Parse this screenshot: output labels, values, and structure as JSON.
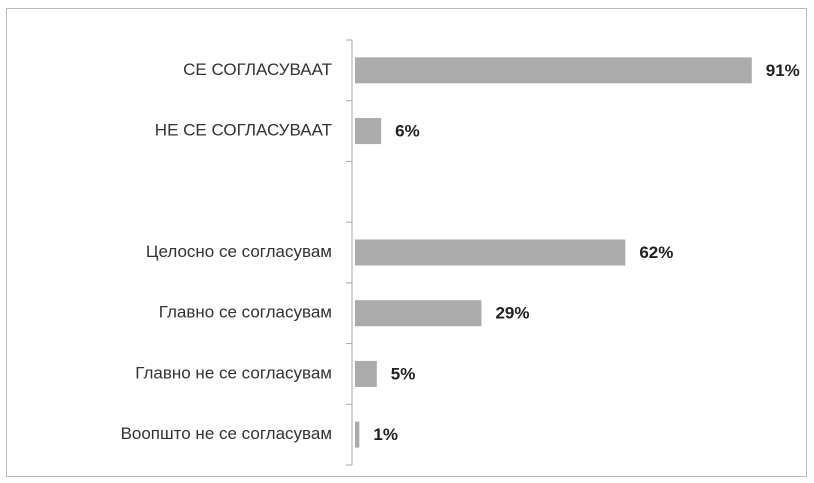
{
  "chart_data": {
    "type": "hbar",
    "categories": [
      "СЕ СОГЛАСУВААТ",
      "НЕ СЕ СОГЛАСУВААТ",
      null,
      "Целосно се согласувам",
      "Главно се согласувам",
      "Главно не се согласувам",
      "Воопшто не се согласувам"
    ],
    "values": [
      91,
      6,
      null,
      62,
      29,
      5,
      1
    ],
    "value_labels": [
      "91%",
      "6%",
      null,
      "62%",
      "29%",
      "5%",
      "1%"
    ],
    "color": "#ababab",
    "xlim": [
      0,
      100
    ]
  }
}
